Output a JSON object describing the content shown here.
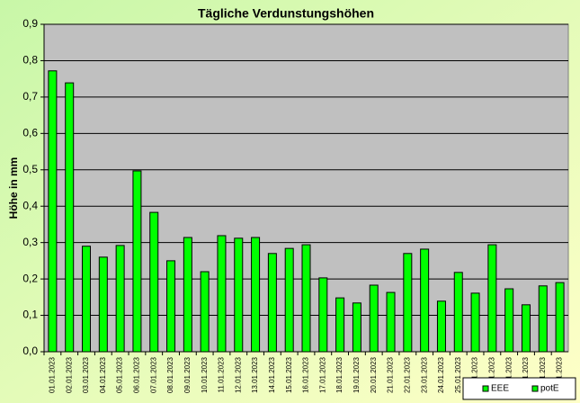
{
  "chart_data": {
    "type": "bar",
    "title": "Tägliche Verdunstungshöhen",
    "y_label": "Höhe in mm",
    "categories": [
      "01.01.2023",
      "02.01.2023",
      "03.01.2023",
      "04.01.2023",
      "05.01.2023",
      "06.01.2023",
      "07.01.2023",
      "08.01.2023",
      "09.01.2023",
      "10.01.2023",
      "11.01.2023",
      "12.01.2023",
      "13.01.2023",
      "14.01.2023",
      "15.01.2023",
      "16.01.2023",
      "17.01.2023",
      "18.01.2023",
      "19.01.2023",
      "20.01.2023",
      "21.01.2023",
      "22.01.2023",
      "23.01.2023",
      "24.01.2023",
      "25.01.2023",
      "26.01.2023",
      "27.01.2023",
      "28.01.2023",
      "29.01.2023",
      "30.01.2023",
      "31.01.2023"
    ],
    "series": [
      {
        "name": "EEE",
        "color": "#00ff00",
        "values": [
          null,
          null,
          null,
          null,
          null,
          null,
          null,
          null,
          null,
          null,
          null,
          null,
          null,
          null,
          null,
          null,
          null,
          null,
          null,
          null,
          null,
          null,
          null,
          null,
          null,
          null,
          null,
          null,
          null,
          null,
          null
        ]
      },
      {
        "name": "potE",
        "color": "#00ff00",
        "values": [
          0.772,
          0.739,
          0.29,
          0.26,
          0.292,
          0.497,
          0.383,
          0.25,
          0.314,
          0.22,
          0.319,
          0.312,
          0.314,
          0.27,
          0.284,
          0.294,
          0.203,
          0.148,
          0.134,
          0.183,
          0.163,
          0.27,
          0.282,
          0.139,
          0.218,
          0.161,
          0.294,
          0.173,
          0.129,
          0.181,
          0.19
        ]
      }
    ],
    "ylim": [
      0,
      0.9
    ],
    "yticks": [
      {
        "value": 0,
        "label": "0,0"
      },
      {
        "value": 0.1,
        "label": "0,1"
      },
      {
        "value": 0.2,
        "label": "0,2"
      },
      {
        "value": 0.3,
        "label": "0,3"
      },
      {
        "value": 0.4,
        "label": "0,4"
      },
      {
        "value": 0.5,
        "label": "0,5"
      },
      {
        "value": 0.6,
        "label": "0,6"
      },
      {
        "value": 0.7,
        "label": "0,7"
      },
      {
        "value": 0.8,
        "label": "0,8"
      },
      {
        "value": 0.9,
        "label": "0,9"
      }
    ],
    "grid": true,
    "legend": "bottom-right"
  }
}
